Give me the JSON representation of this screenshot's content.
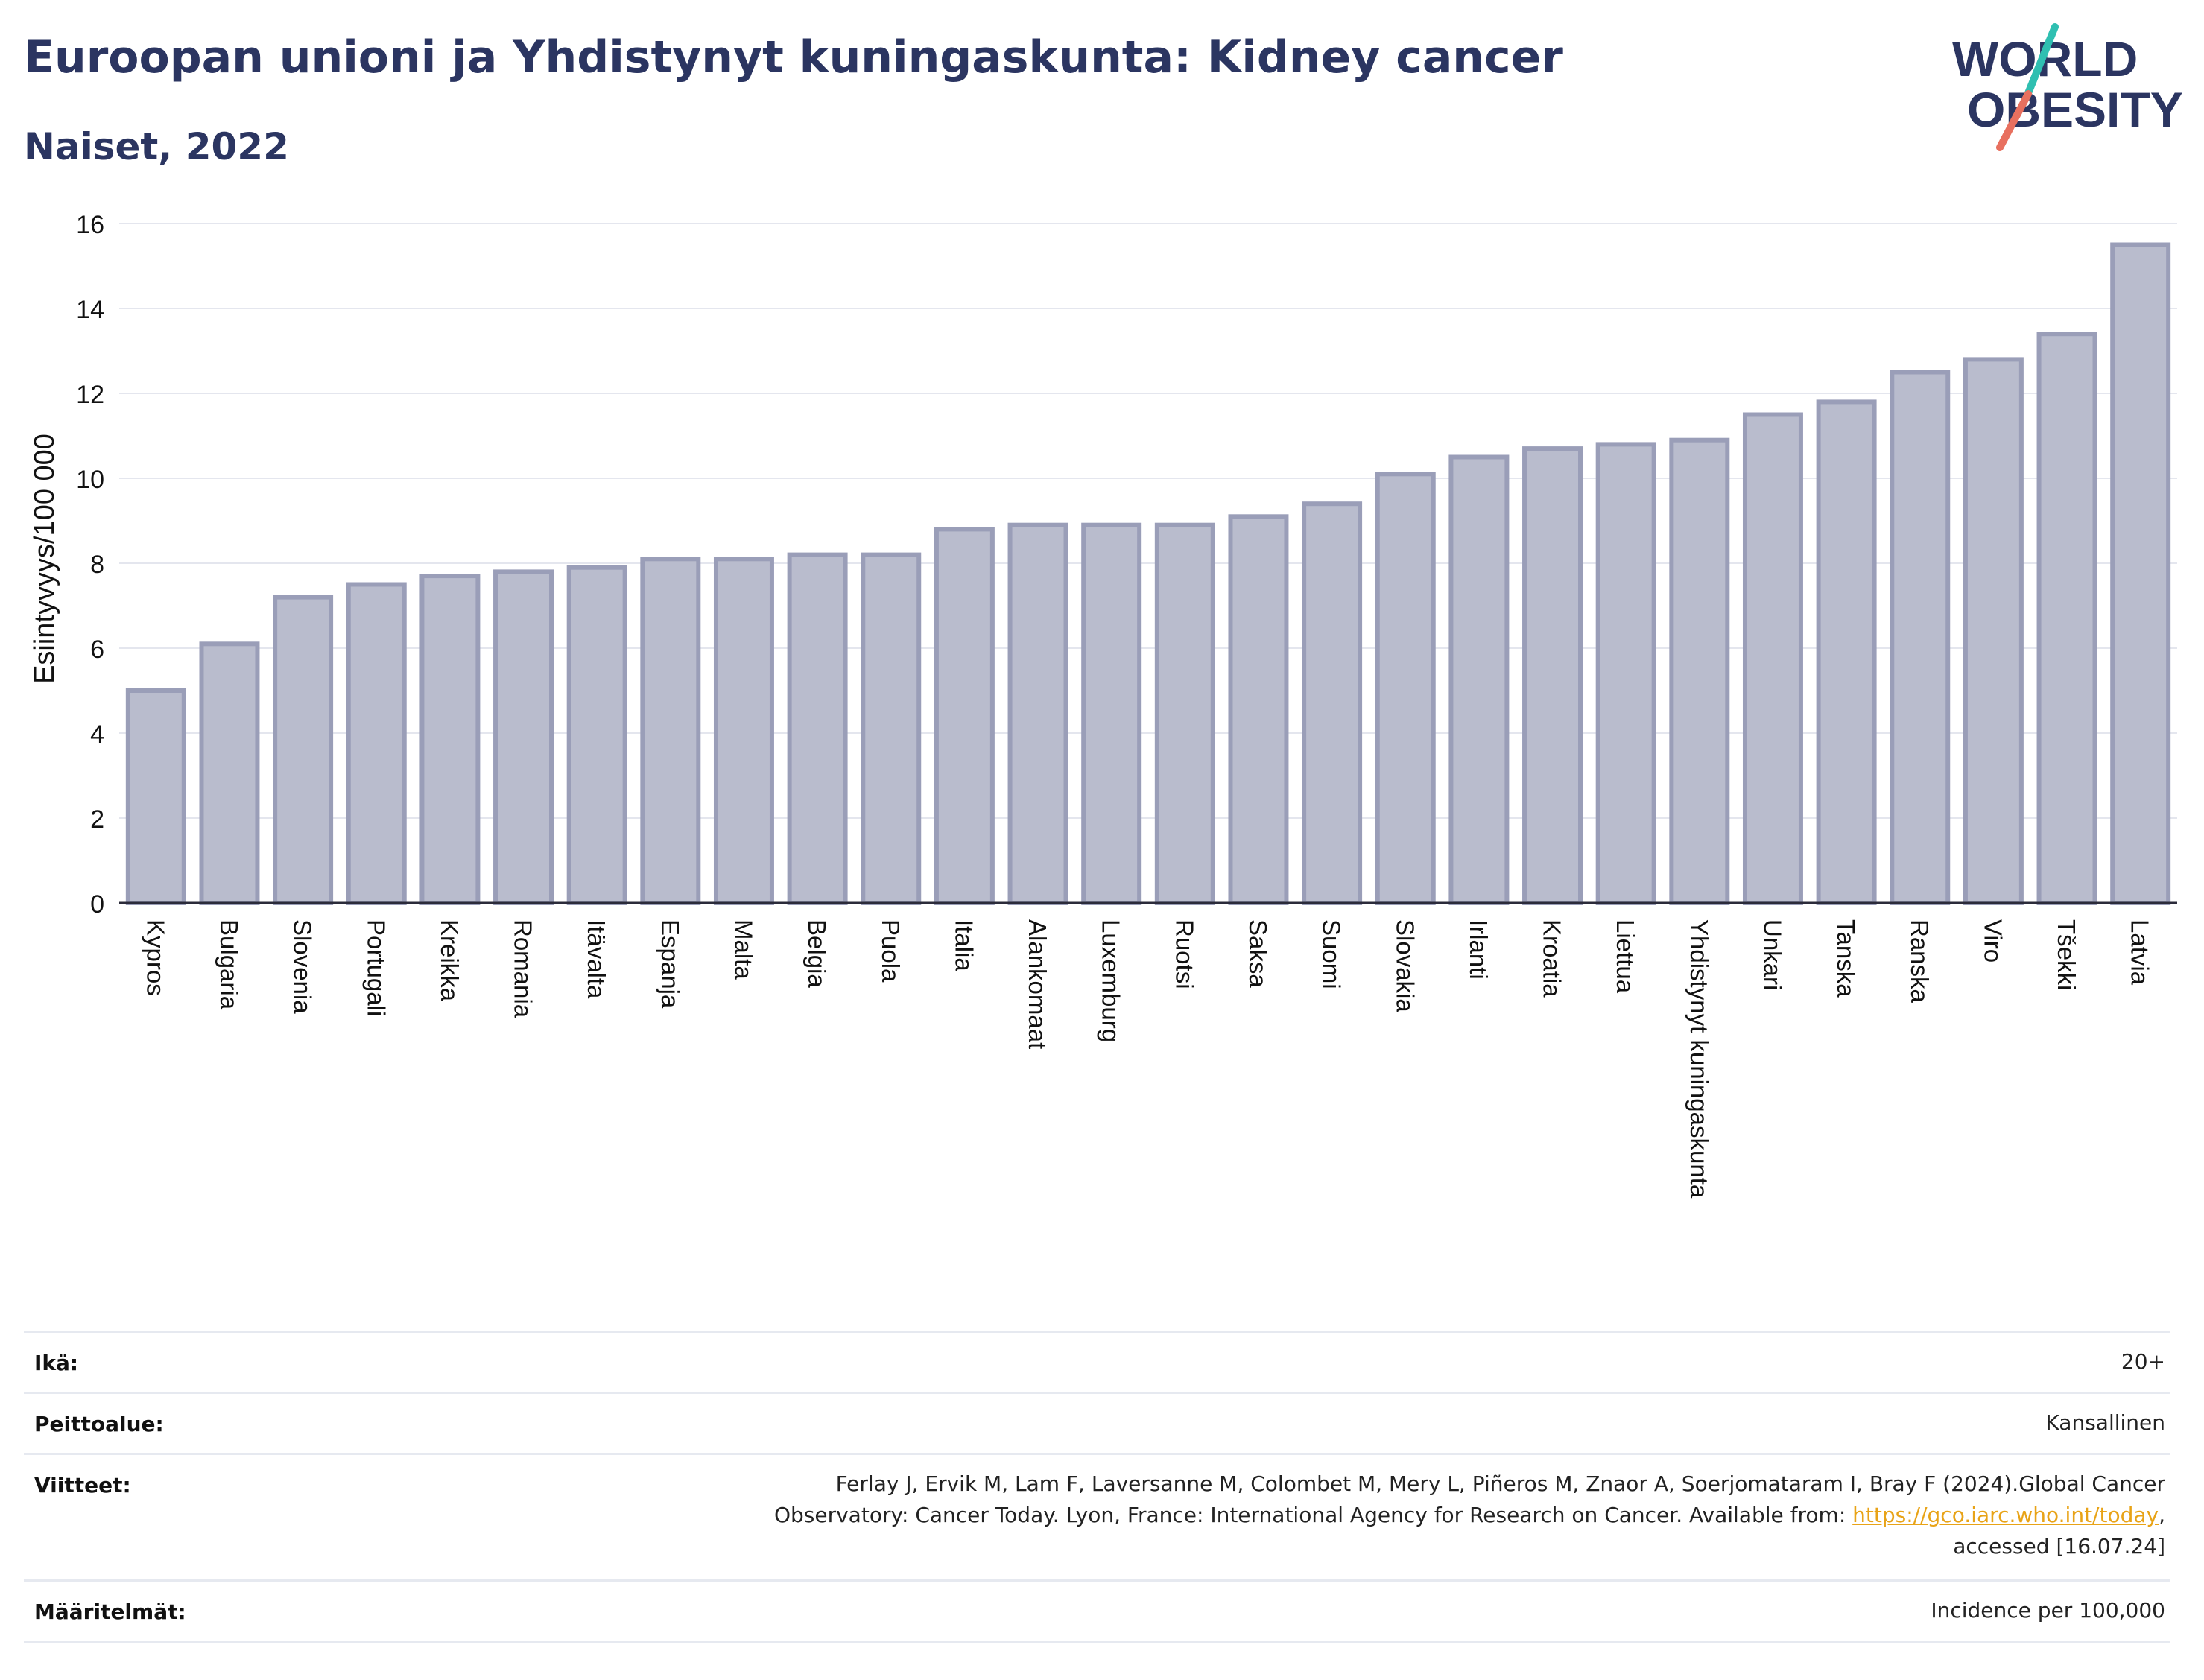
{
  "header": {
    "title": "Euroopan unioni ja Yhdistynyt kuningaskunta: Kidney cancer",
    "subtitle": "Naiset, 2022"
  },
  "logo": {
    "line1": "WORLD",
    "line2": "OBESITY",
    "icon": "world-obesity-logo",
    "colors": [
      "#2b3561",
      "#2fbfb1",
      "#e8705f"
    ]
  },
  "chart_data": {
    "type": "bar",
    "ylabel": "Esiintyvyys/100 000",
    "xlabel": "",
    "ylim": [
      0,
      16
    ],
    "yticks": [
      0,
      2,
      4,
      6,
      8,
      10,
      12,
      14,
      16
    ],
    "grid": true,
    "bar_color": "#b9bccd",
    "bar_edge_color": "#9a9eb8",
    "categories": [
      "Kypros",
      "Bulgaria",
      "Slovenia",
      "Portugali",
      "Kreikka",
      "Romania",
      "Itävalta",
      "Espanja",
      "Malta",
      "Belgia",
      "Puola",
      "Italia",
      "Alankomaat",
      "Luxemburg",
      "Ruotsi",
      "Saksa",
      "Suomi",
      "Slovakia",
      "Irlanti",
      "Kroatia",
      "Liettua",
      "Yhdistynyt kuningaskunta",
      "Unkari",
      "Tanska",
      "Ranska",
      "Viro",
      "Tšekki",
      "Latvia"
    ],
    "values": [
      5.0,
      6.1,
      7.2,
      7.5,
      7.7,
      7.8,
      7.9,
      8.1,
      8.1,
      8.2,
      8.2,
      8.8,
      8.9,
      8.9,
      8.9,
      9.1,
      9.4,
      10.1,
      10.5,
      10.7,
      10.8,
      10.9,
      11.5,
      11.8,
      12.5,
      12.8,
      13.4,
      15.5
    ]
  },
  "meta": {
    "age": {
      "label": "Ikä:",
      "value": "20+"
    },
    "coverage": {
      "label": "Peittoalue:",
      "value": "Kansallinen"
    },
    "references": {
      "label": "Viitteet:",
      "line1": "Ferlay J, Ervik M, Lam F, Laversanne M, Colombet M, Mery L, Piñeros M, Znaor A, Soerjomataram I, Bray F (2024).Global Cancer",
      "line2_prefix": "Observatory: Cancer Today. Lyon, France: International Agency for Research on Cancer. Available from: ",
      "link": "https://gco.iarc.who.int/today",
      "line2_suffix": ",",
      "line3": "accessed [16.07.24]"
    },
    "definitions": {
      "label": "Määritelmät:",
      "value": "Incidence per 100,000"
    }
  }
}
